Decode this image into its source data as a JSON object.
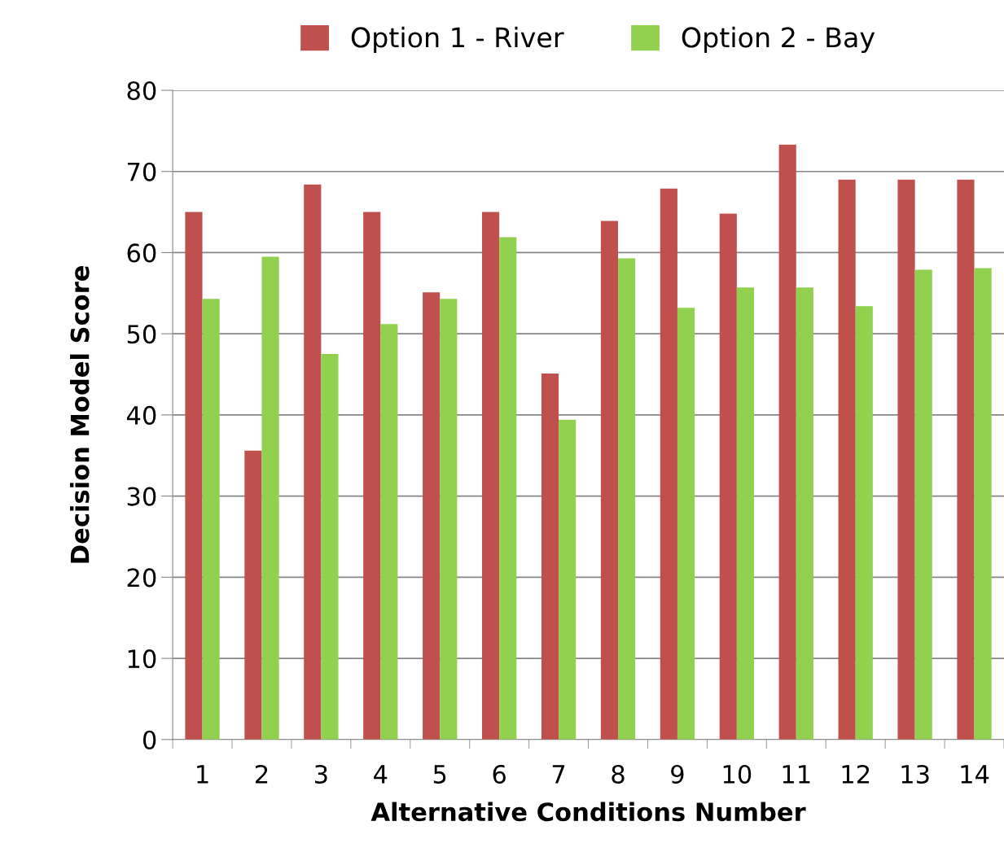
{
  "chart_data": {
    "type": "bar",
    "xlabel": "Alternative Conditions Number",
    "ylabel": "Decision Model Score",
    "categories": [
      "1",
      "2",
      "3",
      "4",
      "5",
      "6",
      "7",
      "8",
      "9",
      "10",
      "11",
      "12",
      "13",
      "14"
    ],
    "series": [
      {
        "name": "Option 1 - River",
        "color": "#c0504d",
        "values": [
          65,
          35.6,
          68.4,
          65,
          55.1,
          65,
          45.1,
          63.9,
          67.9,
          64.8,
          73.3,
          69,
          69,
          69
        ]
      },
      {
        "name": "Option 2 - Bay",
        "color": "#92d050",
        "values": [
          54.3,
          59.5,
          47.5,
          51.2,
          54.3,
          61.9,
          39.4,
          59.3,
          53.2,
          55.7,
          55.7,
          53.4,
          57.9,
          58.1
        ]
      }
    ],
    "ylim": [
      0,
      80
    ],
    "yticks": [
      0,
      10,
      20,
      30,
      40,
      50,
      60,
      70,
      80
    ],
    "grid": "y",
    "legend": "top"
  }
}
